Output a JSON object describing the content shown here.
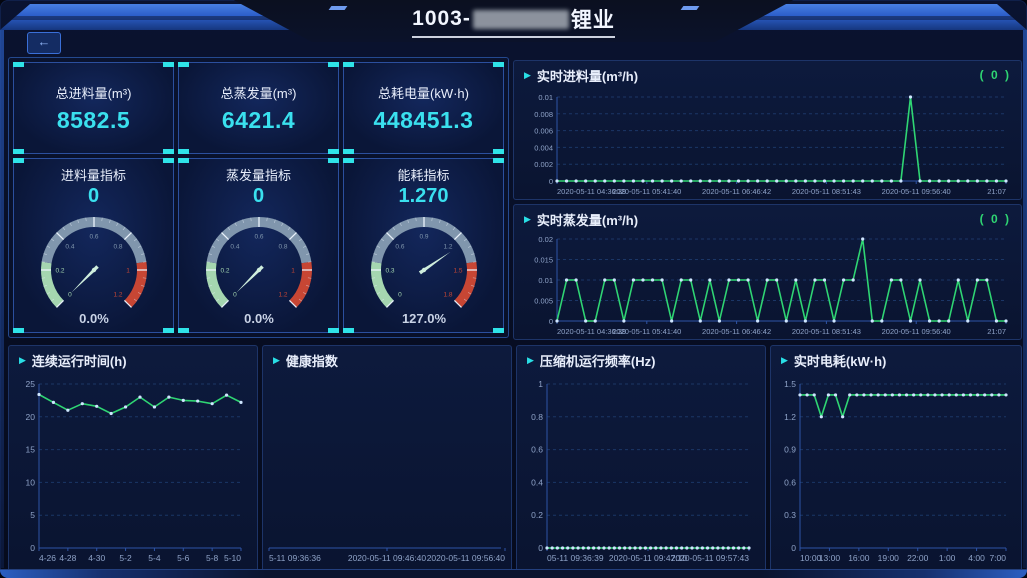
{
  "header": {
    "back_label": "←",
    "title_prefix": "1003-",
    "title_suffix": "锂业"
  },
  "colors": {
    "accent_cyan": "#2fe3e8",
    "value_cyan": "#3ae0ee",
    "line_green": "#2fd573",
    "dot": "#cfe6ff",
    "grid": "#1b3666",
    "axis": "#2e54a6",
    "label": "#8fa3c8",
    "gauge_green": "#a5d6b0",
    "gauge_gray": "#8096ad",
    "gauge_red": "#c74634",
    "needle": "#cfeedd",
    "percent": "#c9d3e6"
  },
  "stats": [
    {
      "label": "总进料量(m³)",
      "value": "8582.5"
    },
    {
      "label": "总蒸发量(m³)",
      "value": "6421.4"
    },
    {
      "label": "总耗电量(kW·h)",
      "value": "448451.3"
    }
  ],
  "gauges": [
    {
      "title": "进料量指标",
      "value_label": "0",
      "percent": "0.0%",
      "min": 0,
      "max": 1.2,
      "value": 0,
      "ticks": [
        0,
        0.2,
        0.4,
        0.6,
        0.8,
        1,
        1.2
      ],
      "zones": [
        [
          0,
          0.2,
          "#a5d6b0"
        ],
        [
          0.2,
          0.8,
          "#8096ad"
        ],
        [
          0.8,
          1,
          "#c74634"
        ]
      ]
    },
    {
      "title": "蒸发量指标",
      "value_label": "0",
      "percent": "0.0%",
      "min": 0,
      "max": 1.2,
      "value": 0,
      "ticks": [
        0,
        0.2,
        0.4,
        0.6,
        0.8,
        1,
        1.2
      ],
      "zones": [
        [
          0,
          0.2,
          "#a5d6b0"
        ],
        [
          0.2,
          0.8,
          "#8096ad"
        ],
        [
          0.8,
          1,
          "#c74634"
        ]
      ]
    },
    {
      "title": "能耗指标",
      "value_label": "1.270",
      "percent": "127.0%",
      "min": 0,
      "max": 1.8,
      "value": 1.27,
      "ticks": [
        0,
        0.3,
        0.6,
        0.9,
        1.2,
        1.5,
        1.8
      ],
      "zones": [
        [
          0,
          0.2,
          "#a5d6b0"
        ],
        [
          0.2,
          0.8,
          "#8096ad"
        ],
        [
          0.8,
          1,
          "#c74634"
        ]
      ]
    }
  ],
  "chart_data": [
    {
      "type": "line",
      "title": "实时进料量(m³/h)",
      "badge": "( 0 )",
      "ylim": [
        0,
        0.01
      ],
      "yticks": [
        0,
        0.002,
        0.004,
        0.006,
        0.008,
        0.01
      ],
      "xlabels": [
        "2020-05-11 04:36:39",
        "2020-05-11 05:41:40",
        "2020-05-11 06:46:42",
        "2020-05-11 08:51:43",
        "2020-05-11 09:56:40",
        "21:07"
      ],
      "values": [
        0,
        0,
        0,
        0,
        0,
        0,
        0,
        0,
        0,
        0,
        0,
        0,
        0,
        0,
        0,
        0,
        0,
        0,
        0,
        0,
        0,
        0,
        0,
        0,
        0,
        0,
        0,
        0,
        0,
        0,
        0,
        0,
        0,
        0,
        0,
        0,
        0,
        0.01,
        0,
        0,
        0,
        0,
        0,
        0,
        0,
        0,
        0,
        0
      ],
      "grid": true,
      "legend": "none"
    },
    {
      "type": "line",
      "title": "实时蒸发量(m³/h)",
      "badge": "( 0 )",
      "ylim": [
        0,
        0.02
      ],
      "yticks": [
        0,
        0.005,
        0.01,
        0.015,
        0.02
      ],
      "xlabels": [
        "2020-05-11 04:36:39",
        "2020-05-11 05:41:40",
        "2020-05-11 06:46:42",
        "2020-05-11 08:51:43",
        "2020-05-11 09:56:40",
        "21:07"
      ],
      "values": [
        0,
        0.01,
        0.01,
        0,
        0,
        0.01,
        0.01,
        0,
        0.01,
        0.01,
        0.01,
        0.01,
        0,
        0.01,
        0.01,
        0,
        0.01,
        0,
        0.01,
        0.01,
        0.01,
        0,
        0.01,
        0.01,
        0,
        0.01,
        0,
        0.01,
        0.01,
        0,
        0.01,
        0.01,
        0.02,
        0,
        0,
        0.01,
        0.01,
        0,
        0.01,
        0,
        0,
        0,
        0.01,
        0,
        0.01,
        0.01,
        0,
        0
      ],
      "grid": true,
      "legend": "none"
    },
    {
      "type": "line",
      "title": "连续运行时间(h)",
      "ylim": [
        0,
        25
      ],
      "yticks": [
        0,
        5,
        10,
        15,
        20,
        25
      ],
      "xlabels": [
        "4-26",
        "4-28",
        "4-30",
        "5-2",
        "5-4",
        "5-6",
        "5-8",
        "5-10"
      ],
      "values": [
        23.4,
        22.2,
        21,
        22,
        21.6,
        20.5,
        21.5,
        23,
        21.5,
        23,
        22.5,
        22.4,
        22,
        23.3,
        22.2
      ],
      "grid": true,
      "legend": "none"
    },
    {
      "type": "line",
      "title": "健康指数",
      "ylim": null,
      "yticks": [],
      "xlabels": [
        "5-11 09:36:36",
        "2020-05-11 09:46:40",
        "2020-05-11 09:56:40"
      ],
      "values": [],
      "grid": false,
      "legend": "none"
    },
    {
      "type": "line",
      "title": "压缩机运行频率(Hz)",
      "ylim": [
        0,
        1
      ],
      "yticks": [
        0,
        0.2,
        0.4,
        0.6,
        0.8,
        1
      ],
      "xlabels": [
        "05-11 09:36:39",
        "2020-05-11 09:47:10",
        "2020-05-11 09:57:43"
      ],
      "values": [
        0,
        0,
        0,
        0,
        0,
        0,
        0,
        0,
        0,
        0,
        0,
        0,
        0,
        0,
        0,
        0,
        0,
        0,
        0,
        0,
        0,
        0,
        0,
        0,
        0,
        0,
        0,
        0,
        0,
        0,
        0,
        0,
        0,
        0,
        0,
        0,
        0,
        0,
        0,
        0
      ],
      "grid": true,
      "legend": "none"
    },
    {
      "type": "line",
      "title": "实时电耗(kW·h)",
      "ylim": [
        0,
        1.5
      ],
      "yticks": [
        0,
        0.3,
        0.6,
        0.9,
        1.2,
        1.5
      ],
      "xlabels": [
        "10:00",
        "13:00",
        "16:00",
        "19:00",
        "22:00",
        "1:00",
        "4:00",
        "7:00"
      ],
      "values": [
        1.4,
        1.4,
        1.4,
        1.2,
        1.4,
        1.4,
        1.2,
        1.4,
        1.4,
        1.4,
        1.4,
        1.4,
        1.4,
        1.4,
        1.4,
        1.4,
        1.4,
        1.4,
        1.4,
        1.4,
        1.4,
        1.4,
        1.4,
        1.4,
        1.4,
        1.4,
        1.4,
        1.4,
        1.4,
        1.4
      ],
      "grid": true,
      "legend": "none"
    }
  ]
}
